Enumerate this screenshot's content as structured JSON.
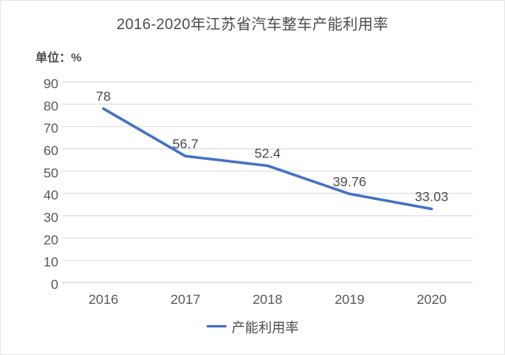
{
  "chart_data": {
    "type": "line",
    "title": "2016-2020年江苏省汽车整车产能利用率",
    "unit_label": "单位：%",
    "categories": [
      "2016",
      "2017",
      "2018",
      "2019",
      "2020"
    ],
    "series": [
      {
        "name": "产能利用率",
        "values": [
          78,
          56.7,
          52.4,
          39.76,
          33.03
        ],
        "point_labels": [
          "78",
          "56.7",
          "52.4",
          "39.76",
          "33.03"
        ],
        "color": "#4472c4"
      }
    ],
    "xlabel": "",
    "ylabel": "",
    "ylim": [
      0,
      90
    ],
    "yticks": [
      0,
      10,
      20,
      30,
      40,
      50,
      60,
      70,
      80,
      90
    ],
    "grid": "horizontal",
    "legend_position": "bottom",
    "colors": {
      "series_line": "#4472c4",
      "gridline": "#e4e4e4",
      "axis_baseline": "#d6d6d6",
      "axis_text": "#595959",
      "data_label_text": "#4b4b4b",
      "title_text": "#4b4b4b"
    }
  }
}
